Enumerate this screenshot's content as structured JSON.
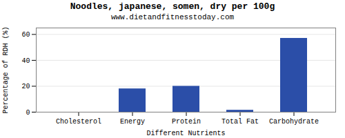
{
  "chart_data": {
    "type": "bar",
    "title": "Noodles, japanese, somen, dry per 100g",
    "subtitle": "www.dietandfitnesstoday.com",
    "xlabel": "Different Nutrients",
    "ylabel": "Percentage of RDH (%)",
    "categories": [
      "Cholesterol",
      "Energy",
      "Protein",
      "Total Fat",
      "Carbohydrate"
    ],
    "values": [
      0,
      18,
      20,
      1.5,
      57
    ],
    "color": "#2b4ea8",
    "ylim": [
      0,
      65
    ],
    "yticks": [
      0,
      20,
      40,
      60
    ],
    "grid": true
  }
}
